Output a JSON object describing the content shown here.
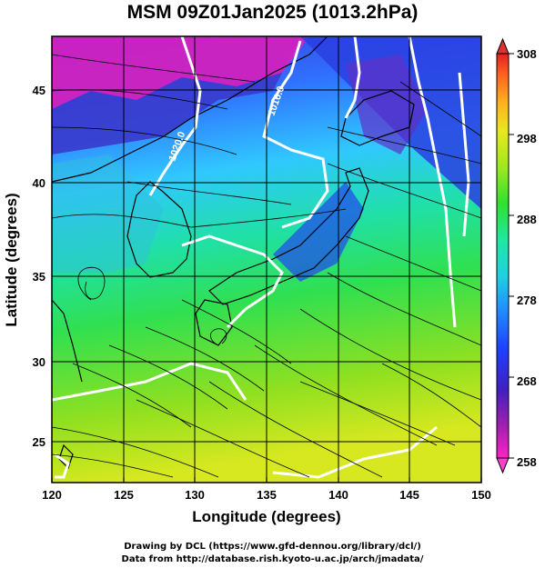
{
  "title": "MSM 09Z01Jan2025 (1013.2hPa)",
  "x_axis": {
    "label": "Longitude (degrees)",
    "ticks": [
      "120",
      "125",
      "130",
      "135",
      "140",
      "145",
      "150"
    ],
    "range": [
      120,
      150
    ]
  },
  "y_axis": {
    "label": "Latitude  (degrees)",
    "ticks": [
      "25",
      "30",
      "35",
      "40",
      "45"
    ],
    "range": [
      22.4,
      47.6
    ]
  },
  "colorbar": {
    "ticks": [
      "258",
      "268",
      "278",
      "288",
      "298",
      "308"
    ],
    "range": [
      258,
      308
    ]
  },
  "contour_labels": [
    "1020.0",
    "1016.0"
  ],
  "footer": {
    "line1": "Drawing by DCL (https://www.gfd-dennou.org/library/dcl/)",
    "line2": "Data from http://database.rish.kyoto-u.ac.jp/arch/jmadata/"
  }
}
